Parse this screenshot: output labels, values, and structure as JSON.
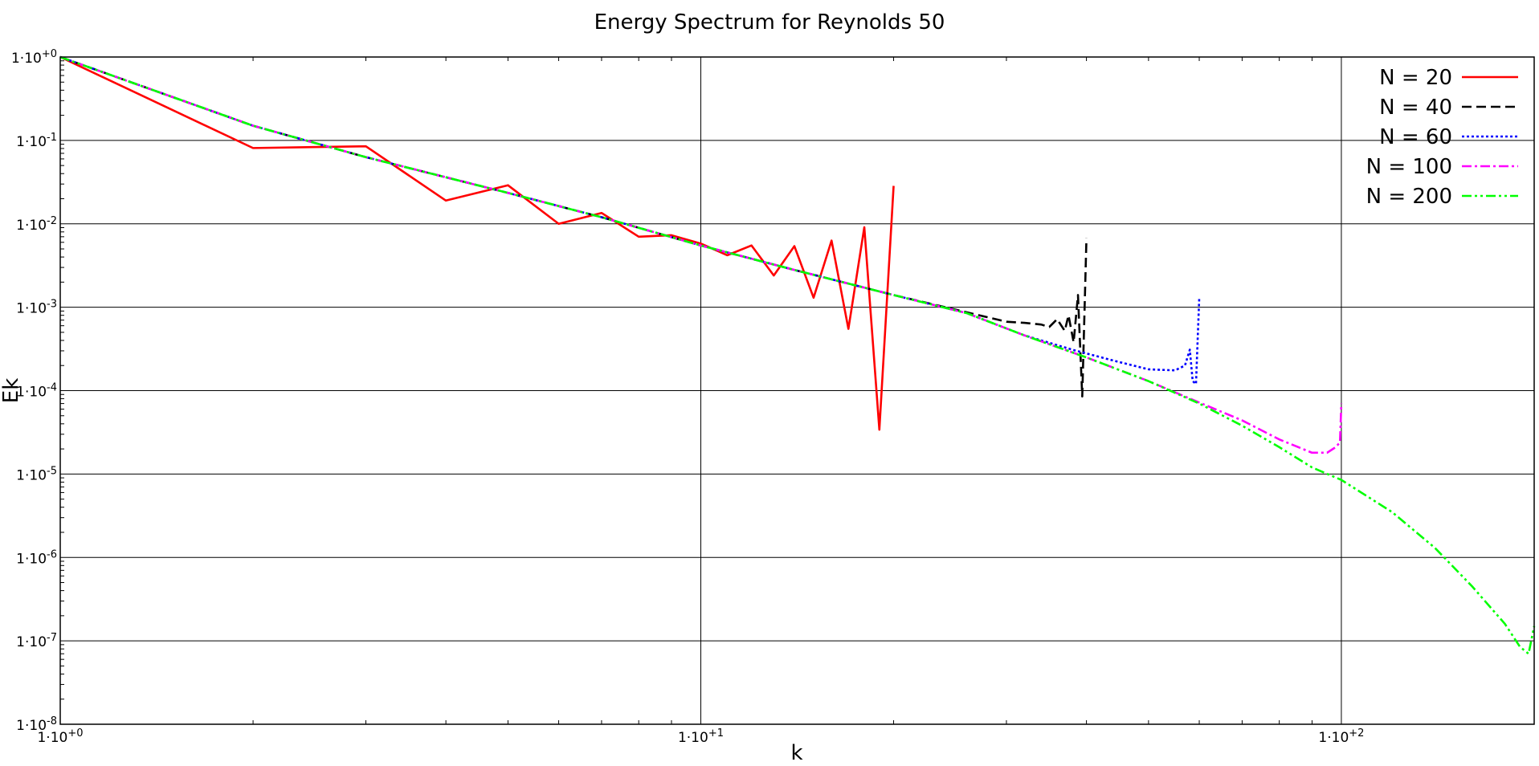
{
  "chart_data": {
    "type": "line",
    "title": "Energy Spectrum for Reynolds 50",
    "xlabel": "k",
    "ylabel": "Ek",
    "xscale": "log",
    "yscale": "log",
    "xlim": [
      1,
      200
    ],
    "ylim": [
      1e-08,
      1
    ],
    "grid": true,
    "legend_position": "top-right",
    "x_ticks": [
      {
        "value": 1,
        "base": "1·10",
        "exp": "+0"
      },
      {
        "value": 10,
        "base": "1·10",
        "exp": "+1"
      },
      {
        "value": 100,
        "base": "1·10",
        "exp": "+2"
      }
    ],
    "y_ticks": [
      {
        "value": 1,
        "base": "1·10",
        "exp": "+0"
      },
      {
        "value": 0.1,
        "base": "1·10",
        "exp": "-1"
      },
      {
        "value": 0.01,
        "base": "1·10",
        "exp": "-2"
      },
      {
        "value": 0.001,
        "base": "1·10",
        "exp": "-3"
      },
      {
        "value": 0.0001,
        "base": "1·10",
        "exp": "-4"
      },
      {
        "value": 1e-05,
        "base": "1·10",
        "exp": "-5"
      },
      {
        "value": 1e-06,
        "base": "1·10",
        "exp": "-6"
      },
      {
        "value": 1e-07,
        "base": "1·10",
        "exp": "-7"
      },
      {
        "value": 1e-08,
        "base": "1·10",
        "exp": "-8"
      }
    ],
    "series": [
      {
        "name": "N = 20",
        "color": "#ff0000",
        "dash": "solid",
        "points": [
          [
            1,
            1
          ],
          [
            2,
            0.081
          ],
          [
            3,
            0.085
          ],
          [
            4,
            0.019
          ],
          [
            5,
            0.029
          ],
          [
            6,
            0.01
          ],
          [
            7,
            0.0135
          ],
          [
            8,
            0.007
          ],
          [
            9,
            0.0073
          ],
          [
            10,
            0.0058
          ],
          [
            11,
            0.0042
          ],
          [
            12,
            0.0055
          ],
          [
            13,
            0.0024
          ],
          [
            14,
            0.0054
          ],
          [
            15,
            0.0013
          ],
          [
            16,
            0.0063
          ],
          [
            17,
            0.00055
          ],
          [
            18,
            0.0091
          ],
          [
            19,
            3.4e-05
          ],
          [
            20,
            0.0285
          ]
        ]
      },
      {
        "name": "N = 40",
        "color": "#000000",
        "dash": "dashed",
        "points": [
          [
            1,
            1
          ],
          [
            2,
            0.15
          ],
          [
            3,
            0.063
          ],
          [
            5,
            0.0235
          ],
          [
            7,
            0.012
          ],
          [
            10,
            0.0055
          ],
          [
            14,
            0.0028
          ],
          [
            20,
            0.0014
          ],
          [
            26,
            0.00087
          ],
          [
            30,
            0.00067
          ],
          [
            32,
            0.00065
          ],
          [
            34,
            0.00062
          ],
          [
            35,
            0.00058
          ],
          [
            36,
            0.00072
          ],
          [
            37,
            0.00052
          ],
          [
            37.5,
            0.0008
          ],
          [
            38.2,
            0.00038
          ],
          [
            38.8,
            0.0014
          ],
          [
            39.4,
            8.5e-05
          ],
          [
            40,
            0.0067
          ]
        ]
      },
      {
        "name": "N = 60",
        "color": "#0000ff",
        "dash": "dotted",
        "points": [
          [
            1,
            1
          ],
          [
            2,
            0.15
          ],
          [
            3,
            0.063
          ],
          [
            5,
            0.0235
          ],
          [
            7,
            0.012
          ],
          [
            10,
            0.0055
          ],
          [
            14,
            0.0028
          ],
          [
            20,
            0.0014
          ],
          [
            26,
            0.00085
          ],
          [
            32,
            0.00046
          ],
          [
            38,
            0.00031
          ],
          [
            44,
            0.00023
          ],
          [
            50,
            0.00018
          ],
          [
            55,
            0.000175
          ],
          [
            57,
            0.0002
          ],
          [
            58,
            0.00031
          ],
          [
            58.6,
            0.00013
          ],
          [
            59.3,
            0.00012
          ],
          [
            60,
            0.0013
          ]
        ]
      },
      {
        "name": "N = 100",
        "color": "#ff00ff",
        "dash": "dashdot",
        "points": [
          [
            1,
            1
          ],
          [
            2,
            0.15
          ],
          [
            3,
            0.063
          ],
          [
            5,
            0.0235
          ],
          [
            7,
            0.012
          ],
          [
            10,
            0.0055
          ],
          [
            14,
            0.0028
          ],
          [
            20,
            0.0014
          ],
          [
            26,
            0.00085
          ],
          [
            32,
            0.00046
          ],
          [
            40,
            0.00025
          ],
          [
            50,
            0.00013
          ],
          [
            60,
            7.2e-05
          ],
          [
            70,
            4.4e-05
          ],
          [
            80,
            2.6e-05
          ],
          [
            90,
            1.8e-05
          ],
          [
            95,
            1.8e-05
          ],
          [
            98,
            2.1e-05
          ],
          [
            99.5,
            2.4e-05
          ],
          [
            100,
            7e-05
          ]
        ]
      },
      {
        "name": "N = 200",
        "color": "#00ff00",
        "dash": "dashdotdot",
        "points": [
          [
            1,
            1
          ],
          [
            2,
            0.15
          ],
          [
            3,
            0.063
          ],
          [
            5,
            0.0235
          ],
          [
            7,
            0.012
          ],
          [
            10,
            0.0055
          ],
          [
            14,
            0.0028
          ],
          [
            20,
            0.0014
          ],
          [
            26,
            0.00085
          ],
          [
            32,
            0.00046
          ],
          [
            40,
            0.00025
          ],
          [
            50,
            0.00013
          ],
          [
            60,
            7e-05
          ],
          [
            70,
            3.8e-05
          ],
          [
            80,
            2.1e-05
          ],
          [
            90,
            1.2e-05
          ],
          [
            100,
            8.5e-06
          ],
          [
            120,
            3.5e-06
          ],
          [
            140,
            1.3e-06
          ],
          [
            160,
            4.5e-07
          ],
          [
            180,
            1.6e-07
          ],
          [
            190,
            8.5e-08
          ],
          [
            196,
            7e-08
          ],
          [
            200,
            1.5e-07
          ]
        ]
      }
    ]
  }
}
